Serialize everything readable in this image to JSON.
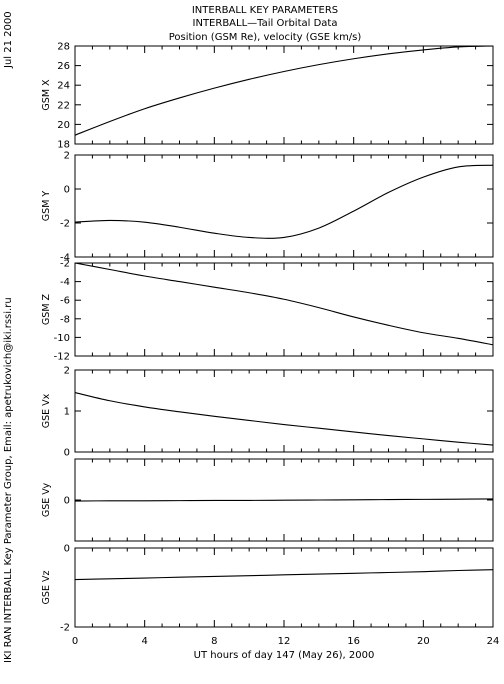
{
  "header": {
    "title_lines": [
      "INTERBALL KEY PARAMETERS",
      "INTERBALL—Tail Orbital Data",
      "Position (GSM Re), velocity (GSE km/s)"
    ],
    "date_label": "Jul 21 2000",
    "credit_label": "IKI RAN INTERBALL Key Parameter Group, Email: apetrukovich@iki.rssi.ru"
  },
  "chart_data": [
    {
      "type": "line",
      "ylabel": "GSM X",
      "ylim": [
        18,
        28
      ],
      "yticks": [
        18,
        20,
        22,
        24,
        26,
        28
      ],
      "x": [
        0,
        2,
        4,
        6,
        8,
        10,
        12,
        14,
        16,
        18,
        20,
        22,
        24
      ],
      "values": [
        18.9,
        20.3,
        21.6,
        22.7,
        23.7,
        24.6,
        25.4,
        26.1,
        26.7,
        27.2,
        27.6,
        27.9,
        28.0
      ]
    },
    {
      "type": "line",
      "ylabel": "GSM Y",
      "ylim": [
        -4,
        2
      ],
      "yticks": [
        -4,
        -2,
        0,
        2
      ],
      "x": [
        0,
        2,
        4,
        6,
        8,
        10,
        12,
        14,
        16,
        18,
        20,
        22,
        24
      ],
      "values": [
        -1.95,
        -1.85,
        -1.95,
        -2.25,
        -2.6,
        -2.85,
        -2.85,
        -2.3,
        -1.3,
        -0.2,
        0.7,
        1.3,
        1.4
      ]
    },
    {
      "type": "line",
      "ylabel": "GSM Z",
      "ylim": [
        -12,
        -2
      ],
      "yticks": [
        -12,
        -10,
        -8,
        -6,
        -4,
        -2
      ],
      "x": [
        0,
        2,
        4,
        6,
        8,
        10,
        12,
        14,
        16,
        18,
        20,
        22,
        24
      ],
      "values": [
        -2.0,
        -2.7,
        -3.4,
        -4.0,
        -4.6,
        -5.2,
        -5.9,
        -6.8,
        -7.8,
        -8.7,
        -9.5,
        -10.1,
        -10.8
      ]
    },
    {
      "type": "line",
      "ylabel": "GSE Vx",
      "ylim": [
        0,
        2
      ],
      "yticks": [
        0,
        1,
        2
      ],
      "x": [
        0,
        2,
        4,
        6,
        8,
        10,
        12,
        14,
        16,
        18,
        20,
        22,
        24
      ],
      "values": [
        1.45,
        1.25,
        1.1,
        0.98,
        0.87,
        0.77,
        0.67,
        0.58,
        0.49,
        0.4,
        0.32,
        0.24,
        0.17
      ]
    },
    {
      "type": "line",
      "ylabel": "GSE Vy",
      "ylim": [
        -2,
        2
      ],
      "yticks": [
        0
      ],
      "x": [
        0,
        2,
        4,
        6,
        8,
        10,
        12,
        14,
        16,
        18,
        20,
        22,
        24
      ],
      "values": [
        -0.05,
        -0.04,
        -0.04,
        -0.03,
        -0.02,
        -0.02,
        -0.01,
        0.0,
        0.01,
        0.02,
        0.03,
        0.04,
        0.05
      ]
    },
    {
      "type": "line",
      "ylabel": "GSE Vz",
      "ylim": [
        -2,
        0
      ],
      "yticks": [
        -2,
        0
      ],
      "x": [
        0,
        2,
        4,
        6,
        8,
        10,
        12,
        14,
        16,
        18,
        20,
        22,
        24
      ],
      "values": [
        -0.8,
        -0.78,
        -0.76,
        -0.74,
        -0.72,
        -0.7,
        -0.68,
        -0.66,
        -0.64,
        -0.62,
        -0.6,
        -0.57,
        -0.55
      ]
    }
  ],
  "xaxis": {
    "label": "UT hours of day 147 (May 26), 2000",
    "xlim": [
      0,
      24
    ],
    "ticks": [
      0,
      4,
      8,
      12,
      16,
      20,
      24
    ]
  }
}
